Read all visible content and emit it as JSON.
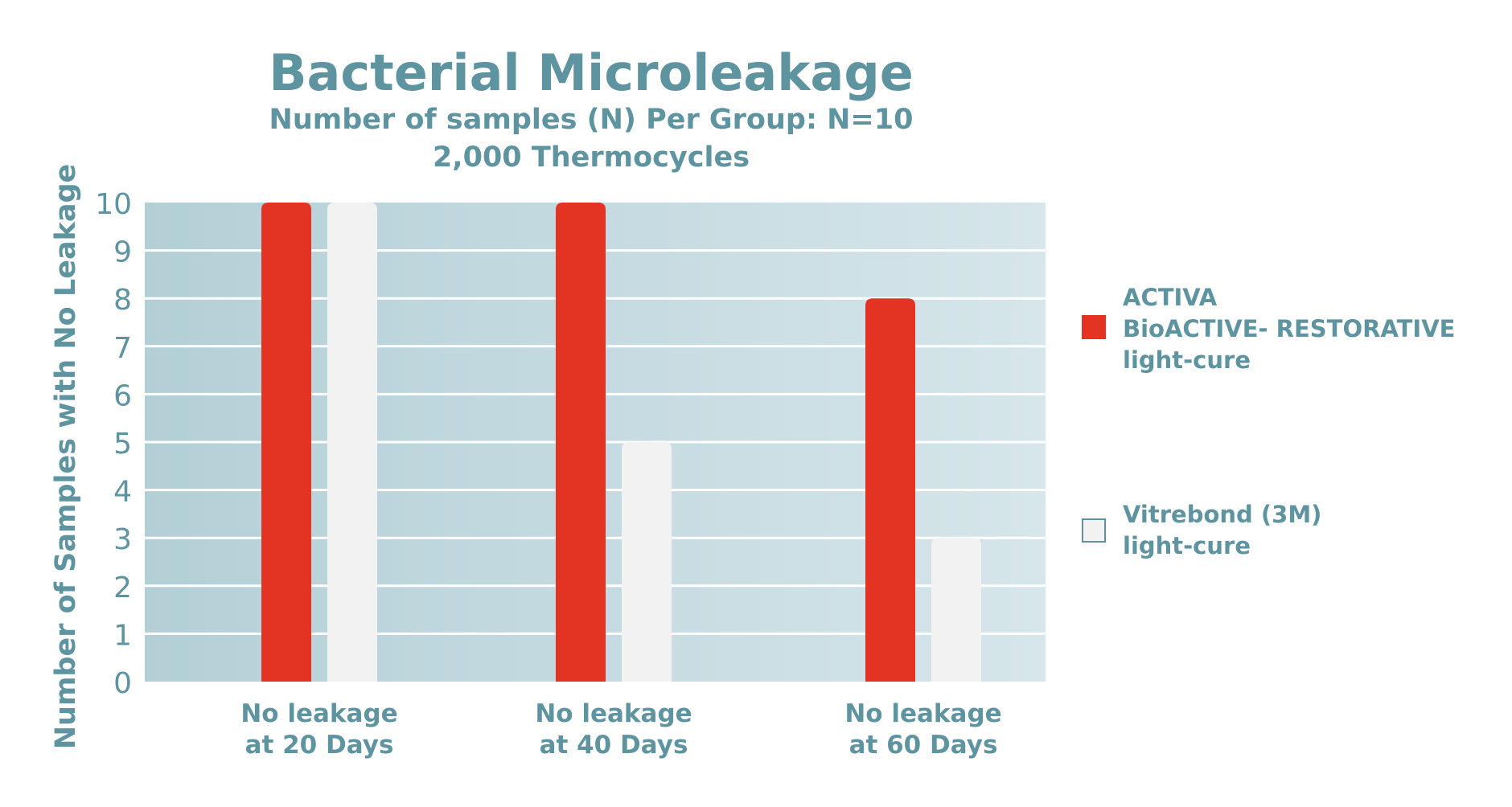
{
  "chart_data": {
    "type": "bar",
    "title": "Bacterial Microleakage",
    "subtitle_lines": [
      "Number of samples (N) Per Group: N=10",
      "2,000 Thermocycles"
    ],
    "ylabel": "Number of Samples with No Leakage",
    "xlabel": "",
    "ylim": [
      0,
      10
    ],
    "yticks": [
      0,
      1,
      2,
      3,
      4,
      5,
      6,
      7,
      8,
      9,
      10
    ],
    "grid": true,
    "legend_position": "right",
    "categories": [
      {
        "line1": "No leakage",
        "line2": "at 20 Days"
      },
      {
        "line1": "No leakage",
        "line2": "at 40 Days"
      },
      {
        "line1": "No leakage",
        "line2": "at 60 Days"
      }
    ],
    "series": [
      {
        "name": "ACTIVA BioACTIVE- RESTORATIVE light-cure",
        "legend_lines": [
          "ACTIVA",
          "BioACTIVE- RESTORATIVE",
          "light-cure"
        ],
        "color": "#E23323",
        "values": [
          10,
          10,
          8
        ]
      },
      {
        "name": "Vitrebond (3M) light-cure",
        "legend_lines": [
          "Vitrebond (3M)",
          "light-cure"
        ],
        "color": "#F2F2F2",
        "values": [
          10,
          5,
          3
        ]
      }
    ]
  },
  "colors": {
    "text": "#5E93A0",
    "plot_bg_left": "#B3CFD6",
    "plot_bg_right": "#D6E6EB",
    "grid": "#FFFFFF"
  }
}
